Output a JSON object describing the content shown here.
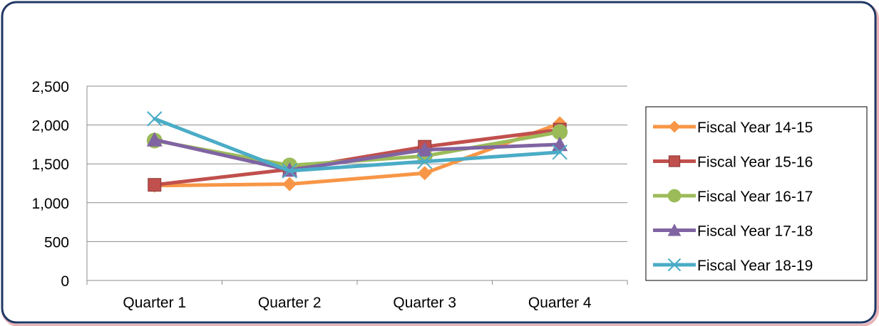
{
  "chart_data": {
    "type": "line",
    "title": "",
    "xlabel": "",
    "ylabel": "",
    "categories": [
      "Quarter 1",
      "Quarter 2",
      "Quarter 3",
      "Quarter 4"
    ],
    "ylim": [
      0,
      2500
    ],
    "yticks": [
      0,
      500,
      1000,
      1500,
      2000,
      2500
    ],
    "ytick_labels": [
      "0",
      "500",
      "1,000",
      "1,500",
      "2,000",
      "2,500"
    ],
    "grid": true,
    "legend_position": "right",
    "series": [
      {
        "name": "Fiscal Year 14-15",
        "color": "#F79646",
        "marker": "diamond",
        "values": [
          1220,
          1240,
          1380,
          2020
        ]
      },
      {
        "name": "Fiscal Year 15-16",
        "color": "#C0504D",
        "marker": "square",
        "values": [
          1230,
          1430,
          1720,
          1940
        ]
      },
      {
        "name": "Fiscal Year 16-17",
        "color": "#9BBB59",
        "marker": "circle",
        "values": [
          1800,
          1480,
          1600,
          1910
        ]
      },
      {
        "name": "Fiscal Year 17-18",
        "color": "#8064A2",
        "marker": "triangle",
        "values": [
          1810,
          1420,
          1680,
          1750
        ]
      },
      {
        "name": "Fiscal Year 18-19",
        "color": "#4BACC6",
        "marker": "x",
        "values": [
          2080,
          1410,
          1530,
          1650
        ]
      }
    ]
  },
  "frame": {
    "border_color": "#1F3864",
    "shadow_color": "#E8B4B8"
  }
}
